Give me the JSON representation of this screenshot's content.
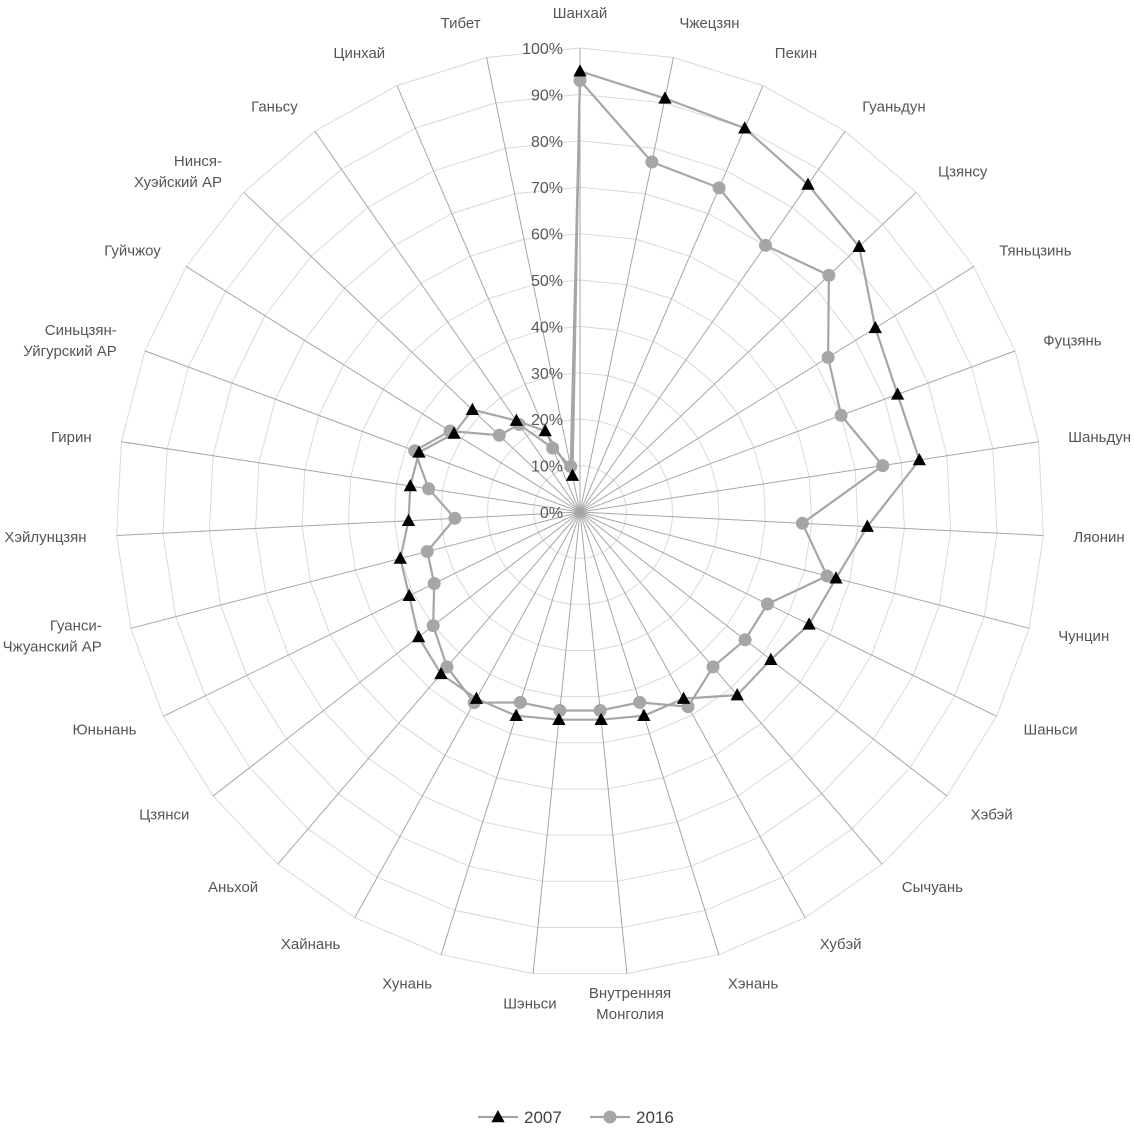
{
  "chart_data": {
    "type": "radar",
    "title": "",
    "rlim": [
      0,
      100
    ],
    "ticks": [
      "0%",
      "10%",
      "20%",
      "30%",
      "40%",
      "50%",
      "60%",
      "70%",
      "80%",
      "90%",
      "100%"
    ],
    "grid": true,
    "legend_position": "bottom",
    "categories": [
      [
        "Шанхай"
      ],
      [
        "Чжецзян"
      ],
      [
        "Пекин"
      ],
      [
        "Гуаньдун"
      ],
      [
        "Цзянсу"
      ],
      [
        "Тяньцзинь"
      ],
      [
        "Фуцзянь"
      ],
      [
        "Шаньдун"
      ],
      [
        "Ляонин"
      ],
      [
        "Чунцин"
      ],
      [
        "Шаньси"
      ],
      [
        "Хэбэй"
      ],
      [
        "Сычуань"
      ],
      [
        "Хубэй"
      ],
      [
        "Хэнань"
      ],
      [
        "Внутренняя",
        "Монголия"
      ],
      [
        "Шэньси"
      ],
      [
        "Хунань"
      ],
      [
        "Хайнань"
      ],
      [
        "Аньхой"
      ],
      [
        "Цзянси"
      ],
      [
        "Юньнань"
      ],
      [
        "Гуанси-",
        "Чжуанский АР"
      ],
      [
        "Хэйлунцзян"
      ],
      [
        "Гирин"
      ],
      [
        "Синьцзян-",
        "Уйгурский АР"
      ],
      [
        "Гуйчжоу"
      ],
      [
        "Нинся-",
        "Хуэйский АР"
      ],
      [
        "Ганьсу"
      ],
      [
        "Цинхай"
      ],
      [
        "Тибет"
      ]
    ],
    "series": [
      {
        "name": "2007",
        "marker": "triangle",
        "color": "#000000",
        "line_color": "#a6a6a6",
        "values": [
          95,
          91,
          90,
          86,
          83,
          75,
          73,
          74,
          62,
          57,
          55,
          52,
          52,
          46,
          46,
          45,
          45,
          46,
          46,
          46,
          44,
          41,
          40,
          37,
          37,
          37,
          32,
          32,
          24,
          19,
          8
        ]
      },
      {
        "name": "2016",
        "marker": "circle",
        "color": "#a6a6a6",
        "line_color": "#a6a6a6",
        "values": [
          93,
          77,
          76,
          70,
          74,
          63,
          60,
          66,
          48,
          55,
          45,
          45,
          44,
          48,
          43,
          43,
          43,
          43,
          47,
          44,
          40,
          35,
          34,
          27,
          33,
          38,
          33,
          24,
          23,
          15,
          10
        ]
      }
    ]
  }
}
